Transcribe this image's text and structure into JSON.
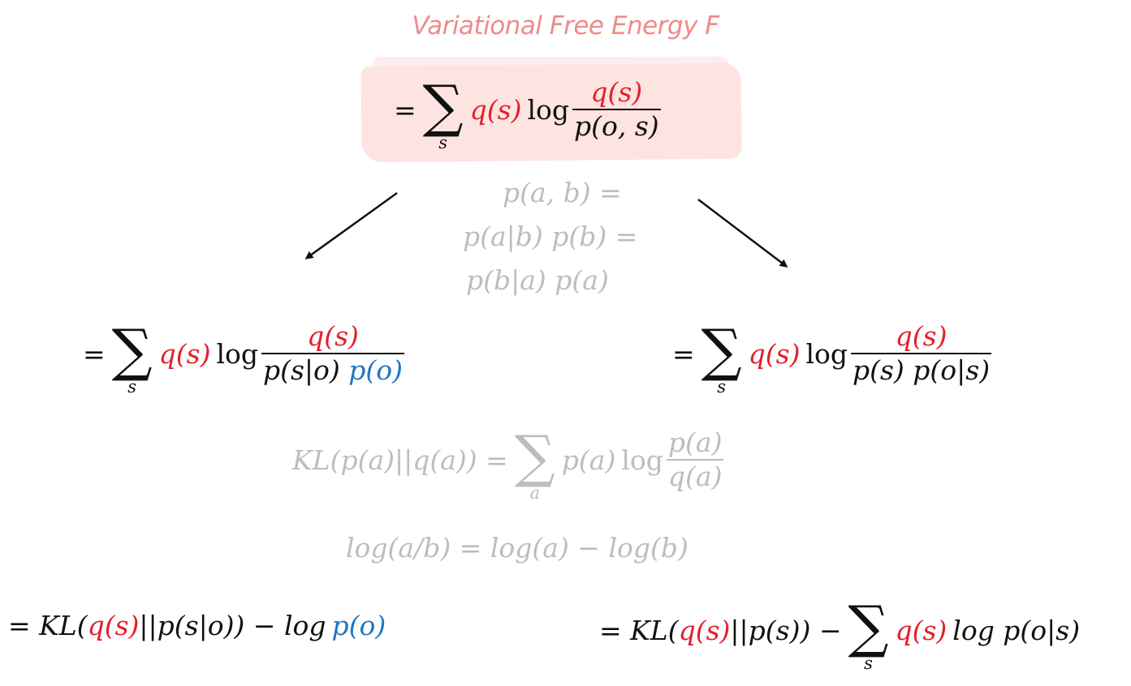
{
  "title": "Variational Free Energy F",
  "colors": {
    "title": "#ef8a8a",
    "highlight": "#fde4e1",
    "q_terms": "#e4202a",
    "evidence_terms": "#2176c1",
    "hint_gray": "#bdbdbd",
    "text": "#111111"
  },
  "top_equation": {
    "eq": "=",
    "sum_symbol": "∑",
    "sum_sub": "s",
    "q": "q(s)",
    "log": "log",
    "num": "q(s)",
    "den": "p(o, s)"
  },
  "product_rule": {
    "line1": "p(a, b) =",
    "line2": "p(a|b) p(b) =",
    "line3": "p(b|a) p(a)"
  },
  "left_equation": {
    "eq": "=",
    "sum_symbol": "∑",
    "sum_sub": "s",
    "q": "q(s)",
    "log": "log",
    "num": "q(s)",
    "den_a": "p(s|o)",
    "den_b": "p(o)"
  },
  "right_equation": {
    "eq": "=",
    "sum_symbol": "∑",
    "sum_sub": "s",
    "q": "q(s)",
    "log": "log",
    "num": "q(s)",
    "den": "p(s) p(o|s)"
  },
  "kl_definition": {
    "lhs": "KL(p(a)||q(a)) =",
    "sum_symbol": "∑",
    "sum_sub": "a",
    "term": "p(a)",
    "log": "log",
    "num": "p(a)",
    "den": "q(a)"
  },
  "log_rule": {
    "text": "log(a/b) = log(a) − log(b)"
  },
  "left_result": {
    "prefix": "= KL(",
    "q": "q(s)",
    "middle": "||p(s|o)) − log",
    "p": "p(o)"
  },
  "right_result": {
    "prefix": "= KL(",
    "q": "q(s)",
    "middle": "||p(s)) −",
    "sum_symbol": "∑",
    "sum_sub": "s",
    "q2": "q(s)",
    "tail": "log p(o|s)"
  }
}
